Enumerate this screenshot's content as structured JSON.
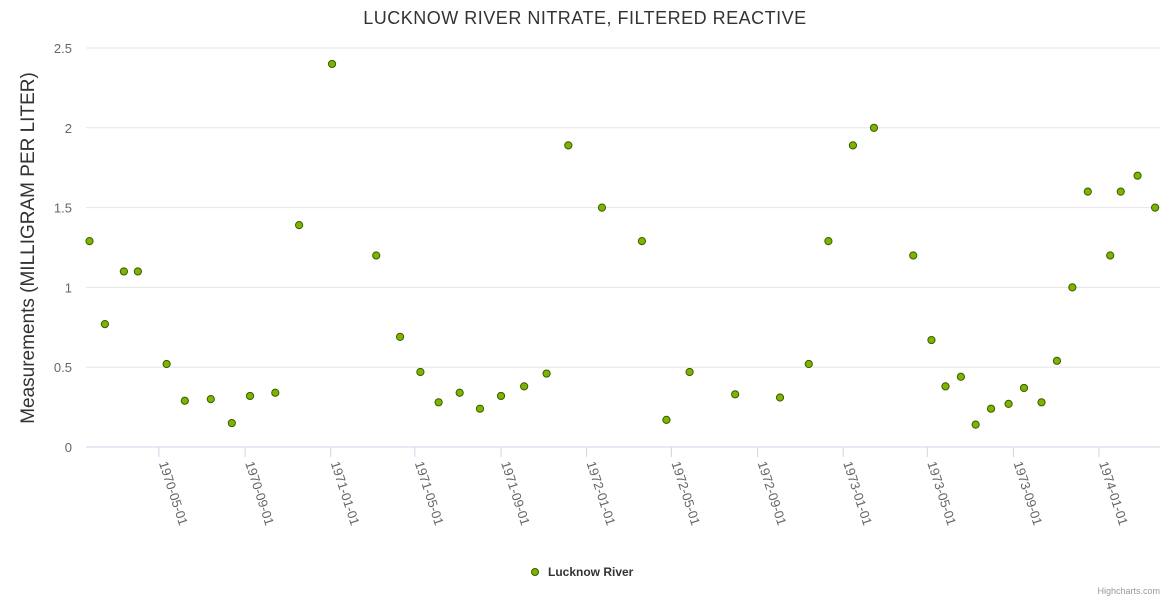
{
  "chart_data": {
    "type": "scatter",
    "title": "LUCKNOW RIVER NITRATE, FILTERED REACTIVE",
    "xlabel": "",
    "ylabel": "Measurements (MILLIGRAM PER LITER)",
    "ylim": [
      0,
      2.5
    ],
    "yticks": [
      "0",
      "0.5",
      "1",
      "1.5",
      "2",
      "2.5"
    ],
    "xlim": [
      "1970-01-17",
      "1974-03-29"
    ],
    "xticks": [
      "1970-05-01",
      "1970-09-01",
      "1971-01-01",
      "1971-05-01",
      "1971-09-01",
      "1972-01-01",
      "1972-05-01",
      "1972-09-01",
      "1973-01-01",
      "1973-05-01",
      "1973-09-01",
      "1974-01-01"
    ],
    "grid": true,
    "legend": "bottom-center",
    "color": "#7cb500",
    "series": [
      {
        "name": "Lucknow River",
        "x": [
          "1970-01-22",
          "1970-02-13",
          "1970-03-12",
          "1970-04-01",
          "1970-05-12",
          "1970-06-07",
          "1970-07-14",
          "1970-08-13",
          "1970-09-08",
          "1970-10-14",
          "1970-11-17",
          "1971-01-03",
          "1971-03-07",
          "1971-04-10",
          "1971-05-09",
          "1971-06-04",
          "1971-07-04",
          "1971-08-02",
          "1971-09-01",
          "1971-10-04",
          "1971-11-05",
          "1971-12-06",
          "1972-01-23",
          "1972-03-20",
          "1972-04-24",
          "1972-05-27",
          "1972-07-31",
          "1972-10-03",
          "1972-11-13",
          "1972-12-11",
          "1973-01-15",
          "1973-02-14",
          "1973-04-11",
          "1973-05-07",
          "1973-05-27",
          "1973-06-18",
          "1973-07-09",
          "1973-07-31",
          "1973-08-25",
          "1973-09-16",
          "1973-10-11",
          "1973-11-02",
          "1973-11-24",
          "1973-12-16",
          "1974-01-17",
          "1974-02-01",
          "1974-02-25",
          "1974-03-22"
        ],
        "values": [
          1.29,
          0.77,
          1.1,
          1.1,
          0.52,
          0.29,
          0.3,
          0.15,
          0.32,
          0.34,
          1.39,
          2.4,
          1.2,
          0.69,
          0.47,
          0.28,
          0.34,
          0.24,
          0.32,
          0.38,
          0.46,
          1.89,
          1.5,
          1.29,
          0.17,
          0.47,
          0.33,
          0.31,
          0.52,
          1.29,
          1.89,
          2.0,
          1.2,
          0.67,
          0.38,
          0.44,
          0.14,
          0.24,
          0.27,
          0.37,
          0.28,
          0.54,
          1.0,
          1.6,
          1.2,
          1.6,
          1.7,
          1.5
        ]
      }
    ]
  },
  "credits": "Highcharts.com"
}
